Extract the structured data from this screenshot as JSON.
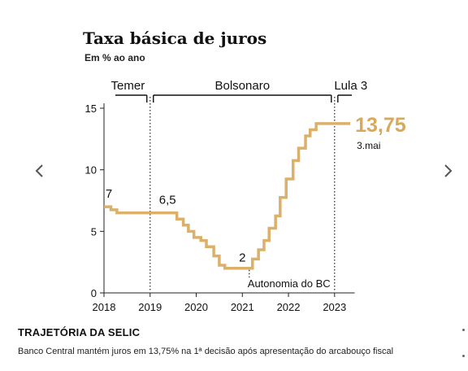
{
  "nav": {
    "prev_icon": "chevron-left-icon",
    "next_icon": "chevron-right-icon"
  },
  "caption": {
    "title": "TRAJETÓRIA DA SELIC",
    "text": "Banco Central mantém juros em 13,75% na 1ª decisão após apresentação do arcabouço fiscal"
  },
  "colors": {
    "line": "#dbb06a",
    "value": "#d9a85a",
    "text": "#111111",
    "axis": "#222222"
  },
  "chart_data": {
    "type": "line",
    "title": "Taxa básica de juros",
    "subtitle": "Em % ao ano",
    "x_ticks": [
      "2018",
      "2019",
      "2020",
      "2021",
      "2022",
      "2023"
    ],
    "y_ticks": [
      "0",
      "5",
      "10",
      "15"
    ],
    "xlim": [
      2018,
      2023.4
    ],
    "ylim": [
      0,
      15
    ],
    "grid": false,
    "series": [
      {
        "step": "post",
        "points": [
          [
            2018.0,
            7.0
          ],
          [
            2018.15,
            6.75
          ],
          [
            2018.28,
            6.5
          ],
          [
            2019.58,
            6.0
          ],
          [
            2019.72,
            5.5
          ],
          [
            2019.83,
            5.0
          ],
          [
            2019.95,
            4.5
          ],
          [
            2020.1,
            4.25
          ],
          [
            2020.22,
            3.75
          ],
          [
            2020.38,
            3.0
          ],
          [
            2020.5,
            2.25
          ],
          [
            2020.62,
            2.0
          ],
          [
            2021.22,
            2.75
          ],
          [
            2021.35,
            3.5
          ],
          [
            2021.47,
            4.25
          ],
          [
            2021.58,
            5.25
          ],
          [
            2021.72,
            6.25
          ],
          [
            2021.82,
            7.75
          ],
          [
            2021.95,
            9.25
          ],
          [
            2022.1,
            10.75
          ],
          [
            2022.22,
            11.75
          ],
          [
            2022.37,
            12.75
          ],
          [
            2022.47,
            13.25
          ],
          [
            2022.6,
            13.75
          ],
          [
            2023.34,
            13.75
          ]
        ]
      }
    ],
    "periods": [
      {
        "label": "Temer",
        "start": 2018.0,
        "end": 2019.0
      },
      {
        "label": "Bolsonaro",
        "start": 2019.0,
        "end": 2023.0
      },
      {
        "label": "Lula 3",
        "start": 2023.0,
        "end": 2023.34
      }
    ],
    "annotations": [
      {
        "text": "7",
        "x": 2018.0,
        "y": 7.0
      },
      {
        "text": "6,5",
        "x": 2019.0,
        "y": 6.5
      },
      {
        "text": "2",
        "x": 2021.0,
        "y": 2.0
      },
      {
        "text": "Autonomia do BC",
        "x": 2021.15,
        "y": 2.0
      }
    ],
    "last_value": {
      "text": "13,75",
      "date": "3.mai",
      "x": 2023.34,
      "y": 13.75
    }
  }
}
